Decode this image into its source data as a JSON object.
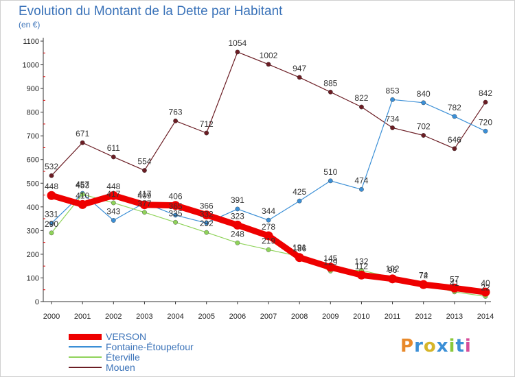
{
  "title": "Evolution du Montant de la Dette par Habitant",
  "subtitle": "(en €)",
  "logo": {
    "text": "Proxiti",
    "colors": [
      "#e8892a",
      "#3b8fd6",
      "#d6b52a",
      "#3b8fd6",
      "#8ac83a",
      "#3b8fd6",
      "#d64c9a"
    ]
  },
  "chart_data": {
    "type": "line",
    "x": [
      2000,
      2001,
      2002,
      2003,
      2004,
      2005,
      2006,
      2007,
      2008,
      2009,
      2010,
      2011,
      2012,
      2013,
      2014
    ],
    "ylim": [
      0,
      1100
    ],
    "yticks": [
      0,
      100,
      200,
      300,
      400,
      500,
      600,
      700,
      800,
      900,
      1000,
      1100
    ],
    "grid": false,
    "legend_position": "bottom-left",
    "series": [
      {
        "name": "Mouen",
        "color": "#6b1d24",
        "values": [
          532,
          671,
          611,
          554,
          763,
          712,
          1054,
          1002,
          947,
          885,
          822,
          734,
          702,
          646,
          842
        ]
      },
      {
        "name": "Fontaine-Étoupefour",
        "color": "#3b8fd6",
        "values": [
          331,
          457,
          343,
          417,
          365,
          332,
          391,
          344,
          425,
          510,
          474,
          853,
          840,
          782,
          720
        ]
      },
      {
        "name": "Éterville",
        "color": "#8fd35a",
        "values": [
          290,
          453,
          417,
          377,
          335,
          292,
          248,
          219,
          191,
          129,
          132,
          102,
          74,
          41,
          22
        ]
      },
      {
        "name": "VERSON",
        "color": "#ee0000",
        "values": [
          448,
          410,
          448,
          409,
          406,
          366,
          323,
          278,
          186,
          145,
          112,
          96,
          72,
          57,
          40
        ]
      }
    ]
  }
}
